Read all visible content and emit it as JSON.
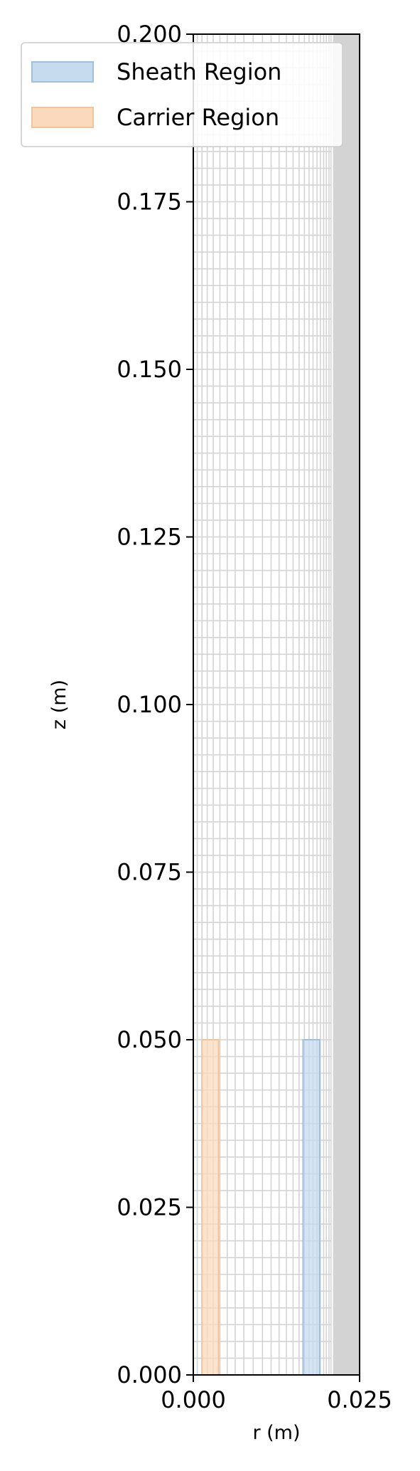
{
  "chart_data": {
    "type": "area",
    "xlabel": "r (m)",
    "ylabel": "z (m)",
    "xlim": [
      0.0,
      0.025
    ],
    "ylim": [
      0.0,
      0.2
    ],
    "x_ticks": [
      0.0,
      0.025
    ],
    "x_tick_labels": [
      "0.000",
      "0.025"
    ],
    "y_ticks": [
      0.0,
      0.025,
      0.05,
      0.075,
      0.1,
      0.125,
      0.15,
      0.175,
      0.2
    ],
    "y_tick_labels": [
      "0.000",
      "0.025",
      "0.050",
      "0.075",
      "0.100",
      "0.125",
      "0.150",
      "0.175",
      "0.200"
    ],
    "grid": {
      "color": "#d4d4d4",
      "r_lines": [
        0.0,
        0.0006,
        0.0013,
        0.0021,
        0.003,
        0.004,
        0.0051,
        0.0063,
        0.0076,
        0.009,
        0.0104,
        0.0117,
        0.0129,
        0.014,
        0.015,
        0.0159,
        0.0167,
        0.0174,
        0.018,
        0.0186,
        0.0191,
        0.0196,
        0.02,
        0.0204,
        0.0207
      ],
      "z_lines": [
        0.0,
        0.0025,
        0.005,
        0.0075,
        0.01,
        0.0125,
        0.015,
        0.0175,
        0.02,
        0.0225,
        0.025,
        0.0275,
        0.03,
        0.0325,
        0.035,
        0.0375,
        0.04,
        0.0425,
        0.045,
        0.0475,
        0.05,
        0.0525,
        0.055,
        0.0575,
        0.06,
        0.0625,
        0.065,
        0.0675,
        0.07,
        0.0725,
        0.075,
        0.0775,
        0.08,
        0.0825,
        0.085,
        0.0875,
        0.09,
        0.0925,
        0.095,
        0.0975,
        0.1,
        0.1025,
        0.105,
        0.1075,
        0.11,
        0.1125,
        0.115,
        0.1175,
        0.12,
        0.1225,
        0.125,
        0.1275,
        0.13,
        0.1325,
        0.135,
        0.1375,
        0.14,
        0.1425,
        0.145,
        0.1475,
        0.15,
        0.1525,
        0.155,
        0.1575,
        0.16,
        0.1625,
        0.165,
        0.1675,
        0.17,
        0.1725,
        0.175,
        0.1775,
        0.18,
        0.1825,
        0.185,
        0.1875,
        0.19,
        0.1925,
        0.195,
        0.1975,
        0.2
      ]
    },
    "wall_region": {
      "r": [
        0.021,
        0.025
      ],
      "z": [
        0.0,
        0.2
      ],
      "color": "#d3d3d3"
    },
    "regions": [
      {
        "name": "Sheath Region",
        "r": [
          0.0165,
          0.019
        ],
        "z": [
          0.0,
          0.05
        ],
        "fill": "#c6dbee",
        "edge": "#9fbfdc"
      },
      {
        "name": "Carrier Region",
        "r": [
          0.0013,
          0.0038
        ],
        "z": [
          0.0,
          0.05
        ],
        "fill": "#fbd9bd",
        "edge": "#f3c39c"
      }
    ],
    "legend": {
      "placement": "top-left",
      "entries": [
        {
          "label": "Sheath Region",
          "fill": "#c6dbee",
          "edge": "#9fbfdc"
        },
        {
          "label": "Carrier Region",
          "fill": "#fbd9bd",
          "edge": "#f3c39c"
        }
      ]
    }
  }
}
